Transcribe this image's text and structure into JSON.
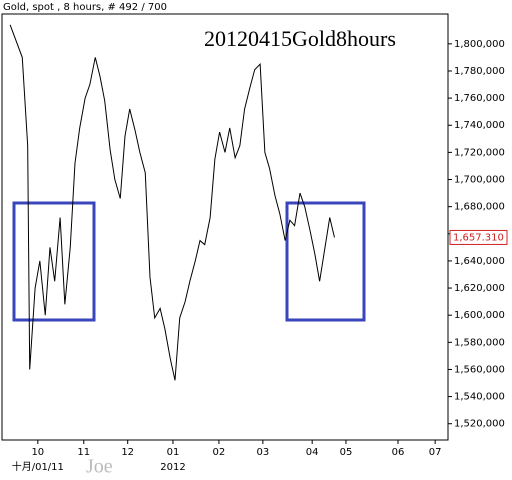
{
  "chart_data": {
    "type": "line",
    "header": "Gold, spot , 8 hours, # 492 / 700",
    "title": "20120415Gold8hours",
    "watermark": "Joe",
    "x": [
      12,
      30,
      38,
      41,
      49,
      56,
      64,
      71,
      78,
      86,
      93,
      101,
      108,
      115,
      123,
      130,
      138,
      145,
      152,
      160,
      167,
      175,
      182,
      189,
      197,
      204,
      212,
      219,
      226,
      234,
      241,
      249,
      256,
      263,
      271,
      278,
      286,
      293,
      300,
      308,
      315,
      322,
      330,
      337,
      345,
      352,
      359,
      367,
      374,
      382,
      389,
      396,
      404,
      411,
      419,
      426,
      433,
      441,
      448,
      456,
      463,
      470,
      478,
      485,
      492
    ],
    "series": [
      {
        "color": "#000000",
        "values": [
          1814,
          1790,
          1725,
          1560,
          1620,
          1640,
          1600,
          1650,
          1625,
          1672,
          1608,
          1650,
          1712,
          1738,
          1760,
          1770,
          1790,
          1776,
          1758,
          1722,
          1700,
          1686,
          1732,
          1752,
          1736,
          1720,
          1705,
          1628,
          1598,
          1605,
          1590,
          1568,
          1552,
          1598,
          1610,
          1625,
          1640,
          1655,
          1652,
          1672,
          1715,
          1735,
          1720,
          1738,
          1716,
          1725,
          1752,
          1768,
          1781,
          1785,
          1720,
          1708,
          1688,
          1675,
          1655,
          1670,
          1666,
          1690,
          1680,
          1662,
          1645,
          1625,
          1650,
          1672,
          1657.31
        ]
      }
    ],
    "last_price": {
      "value": 1657.31,
      "label": "1,657.310"
    },
    "xlim": [
      0,
      660
    ],
    "xticks": [
      {
        "value": 53,
        "label": "10"
      },
      {
        "value": 121,
        "label": "11"
      },
      {
        "value": 186,
        "label": "12"
      },
      {
        "value": 253,
        "label": "01"
      },
      {
        "value": 321,
        "label": "02"
      },
      {
        "value": 386,
        "label": "03"
      },
      {
        "value": 459,
        "label": "04"
      },
      {
        "value": 509,
        "label": "05"
      },
      {
        "value": 586,
        "label": "06"
      },
      {
        "value": 641,
        "label": "07"
      }
    ],
    "xticks_secondary": [
      {
        "value": 53,
        "label": "十月/01/11"
      },
      {
        "value": 253,
        "label": "2012"
      }
    ],
    "ylim": [
      1508,
      1822
    ],
    "yticks": [
      {
        "value": 1520,
        "label": "1,520,000"
      },
      {
        "value": 1540,
        "label": "1,540,000"
      },
      {
        "value": 1560,
        "label": "1,560,000"
      },
      {
        "value": 1580,
        "label": "1,580,000"
      },
      {
        "value": 1600,
        "label": "1,600,000"
      },
      {
        "value": 1620,
        "label": "1,620,000"
      },
      {
        "value": 1640,
        "label": "1,640,000"
      },
      {
        "value": 1660,
        "label": "1,660,000"
      },
      {
        "value": 1680,
        "label": "1,680,000"
      },
      {
        "value": 1700,
        "label": "1,700,000"
      },
      {
        "value": 1720,
        "label": "1,720,000"
      },
      {
        "value": 1740,
        "label": "1,740,000"
      },
      {
        "value": 1760,
        "label": "1,760,000"
      },
      {
        "value": 1780,
        "label": "1,780,000"
      },
      {
        "value": 1800,
        "label": "1,800,000"
      }
    ]
  }
}
